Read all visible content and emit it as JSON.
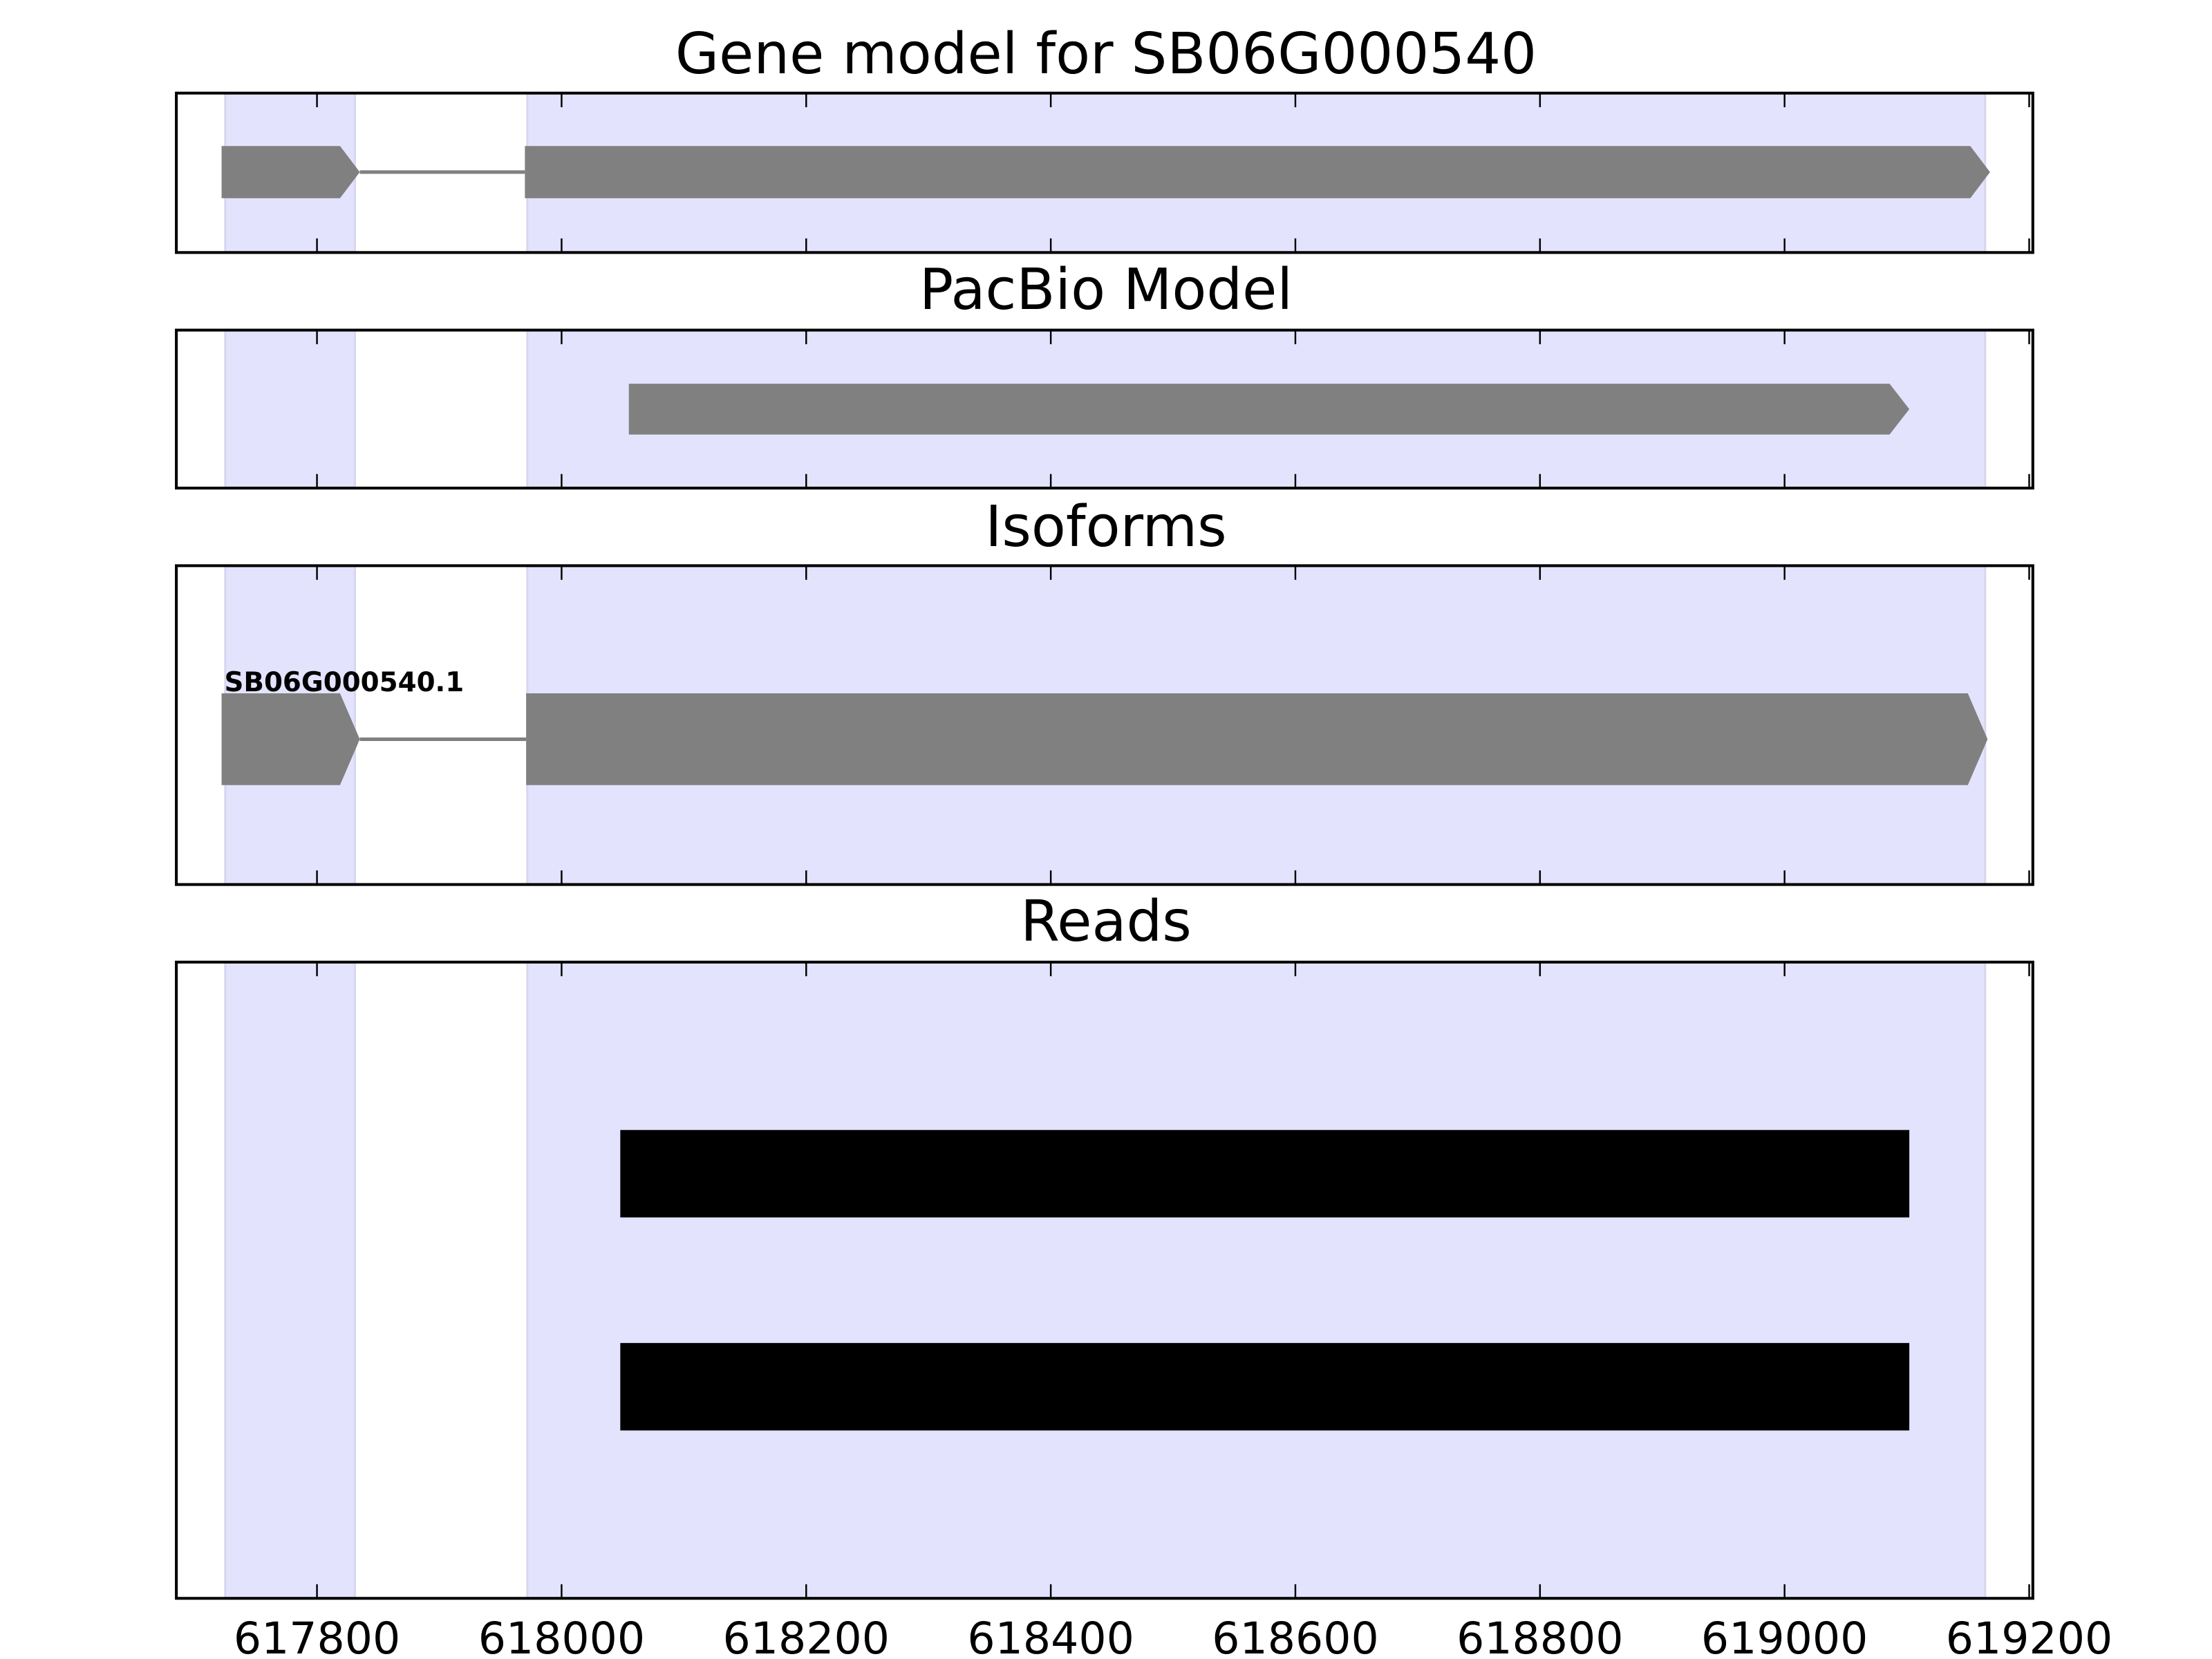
{
  "chart_data": {
    "type": "gene-track",
    "xlim": [
      617685,
      619203
    ],
    "xticks": [
      617800,
      618000,
      618200,
      618400,
      618600,
      618800,
      619000,
      619200
    ],
    "xtick_labels": [
      "617800",
      "618000",
      "618200",
      "618400",
      "618600",
      "618800",
      "619000",
      "619200"
    ],
    "highlight_regions": [
      [
        617725,
        617831
      ],
      [
        617972,
        619164
      ]
    ],
    "colors": {
      "highlight": "#e3e3fd",
      "feature": "#808080",
      "read": "#000000",
      "intron": "#808080"
    },
    "panels": [
      {
        "title": "Gene model for SB06G000540",
        "strand": "+",
        "exons": [
          [
            617722,
            617835
          ],
          [
            617970,
            619168
          ]
        ]
      },
      {
        "title": "PacBio Model",
        "strand": "+",
        "exons": [
          [
            618055,
            619102
          ]
        ]
      },
      {
        "title": "Isoforms",
        "isoforms": [
          {
            "label": "SB06G000540.1",
            "strand": "+",
            "exons": [
              [
                617722,
                617835
              ],
              [
                617971,
                619166
              ]
            ]
          }
        ]
      },
      {
        "title": "Reads",
        "reads": [
          [
            618048,
            619102
          ],
          [
            618048,
            619102
          ]
        ]
      }
    ]
  }
}
